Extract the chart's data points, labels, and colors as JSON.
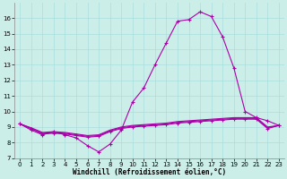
{
  "background_color": "#cceee8",
  "grid_color": "#aadddd",
  "line_color": "#aa00aa",
  "marker": "+",
  "markersize": 3.5,
  "linewidth": 0.8,
  "xlabel": "Windchill (Refroidissement éolien,°C)",
  "xlabel_fontsize": 5.5,
  "ylabel_ticks": [
    7,
    8,
    9,
    10,
    11,
    12,
    13,
    14,
    15,
    16
  ],
  "xlabel_ticks": [
    0,
    1,
    2,
    3,
    4,
    5,
    6,
    7,
    8,
    9,
    10,
    11,
    12,
    13,
    14,
    15,
    16,
    17,
    18,
    19,
    20,
    21,
    22,
    23
  ],
  "xlim": [
    -0.5,
    23.5
  ],
  "ylim": [
    7.0,
    17.0
  ],
  "series1_x": [
    0,
    1,
    2,
    3,
    4,
    5,
    6,
    7,
    8,
    9,
    10,
    11,
    12,
    13,
    14,
    15,
    16,
    17,
    18,
    19,
    20,
    21,
    22,
    23
  ],
  "series1_y": [
    9.2,
    8.8,
    8.5,
    8.7,
    8.5,
    8.3,
    7.8,
    7.4,
    7.9,
    8.8,
    10.6,
    11.5,
    13.0,
    14.4,
    15.8,
    15.9,
    16.4,
    16.1,
    14.8,
    12.8,
    10.0,
    9.6,
    9.4,
    9.1
  ],
  "series2_x": [
    0,
    1,
    2,
    3,
    4,
    5,
    6,
    7,
    8,
    9,
    10,
    11,
    12,
    13,
    14,
    15,
    16,
    17,
    18,
    19,
    20,
    21,
    22,
    23
  ],
  "series2_y": [
    9.2,
    8.9,
    8.55,
    8.6,
    8.55,
    8.45,
    8.35,
    8.4,
    8.7,
    8.9,
    9.0,
    9.05,
    9.1,
    9.15,
    9.25,
    9.3,
    9.35,
    9.4,
    9.45,
    9.5,
    9.5,
    9.5,
    8.9,
    9.1
  ],
  "series3_x": [
    0,
    1,
    2,
    3,
    4,
    5,
    6,
    7,
    8,
    9,
    10,
    11,
    12,
    13,
    14,
    15,
    16,
    17,
    18,
    19,
    20,
    21,
    22,
    23
  ],
  "series3_y": [
    9.2,
    8.9,
    8.6,
    8.65,
    8.6,
    8.5,
    8.4,
    8.45,
    8.75,
    8.95,
    9.05,
    9.1,
    9.15,
    9.2,
    9.3,
    9.35,
    9.4,
    9.45,
    9.5,
    9.55,
    9.55,
    9.55,
    8.95,
    9.1
  ],
  "series4_x": [
    0,
    1,
    2,
    3,
    4,
    5,
    6,
    7,
    8,
    9,
    10,
    11,
    12,
    13,
    14,
    15,
    16,
    17,
    18,
    19,
    20,
    21,
    22,
    23
  ],
  "series4_y": [
    9.2,
    8.95,
    8.65,
    8.7,
    8.65,
    8.55,
    8.45,
    8.5,
    8.8,
    9.0,
    9.1,
    9.15,
    9.2,
    9.25,
    9.35,
    9.4,
    9.45,
    9.5,
    9.55,
    9.6,
    9.6,
    9.6,
    9.0,
    9.1
  ],
  "tick_fontsize": 5.0
}
